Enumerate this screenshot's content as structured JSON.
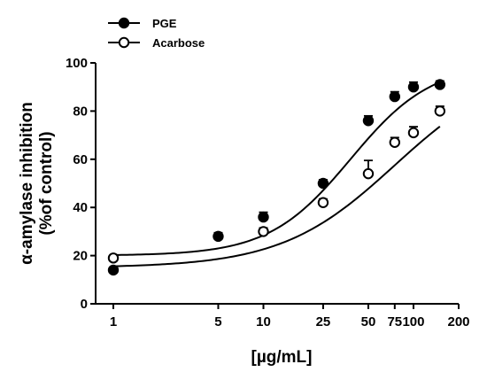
{
  "chart_data": {
    "type": "scatter",
    "x_scale": "log",
    "xlabel": "[µg/mL]",
    "ylabel_line1": "α-amylase inhibition",
    "ylabel_line2": "(%of control)",
    "xticks": [
      1,
      5,
      10,
      25,
      50,
      75,
      100,
      200
    ],
    "xlim": [
      1,
      200
    ],
    "yticks": [
      0,
      20,
      40,
      60,
      80,
      100
    ],
    "ylim": [
      0,
      100
    ],
    "legend_position": "top-left",
    "grid": false,
    "series": [
      {
        "name": "PGE",
        "marker": "filled-circle",
        "color": "#000000",
        "x": [
          1,
          5,
          10,
          25,
          50,
          75,
          100,
          150
        ],
        "y": [
          14,
          28,
          36,
          50,
          76,
          86,
          90,
          91
        ],
        "err": [
          1.0,
          1.5,
          2.0,
          1.5,
          2.0,
          2.0,
          2.0,
          1.5
        ],
        "fit": {
          "bottom": 20,
          "top": 100,
          "ec50": 38,
          "hill": 1.6
        }
      },
      {
        "name": "Acarbose",
        "marker": "open-circle",
        "color": "#000000",
        "x": [
          1,
          10,
          25,
          50,
          75,
          100,
          150
        ],
        "y": [
          19,
          30,
          42,
          54,
          67,
          71,
          80
        ],
        "err": [
          1.0,
          1.5,
          1.5,
          5.5,
          2.0,
          2.5,
          2.0
        ],
        "fit": {
          "bottom": 15,
          "top": 100,
          "ec50": 75,
          "hill": 1.15
        }
      }
    ]
  }
}
